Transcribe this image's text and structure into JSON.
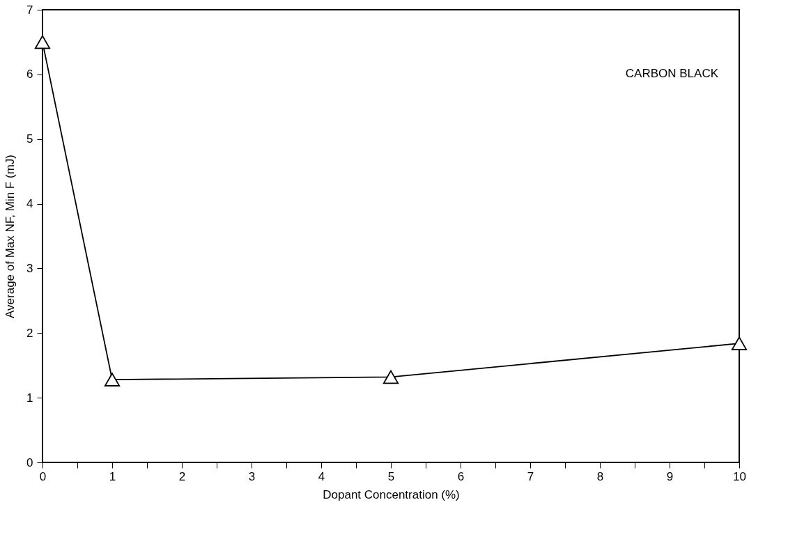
{
  "chart_data": {
    "type": "line",
    "xlabel": "Dopant Concentration (%)",
    "ylabel": "Average of Max NF, Min F (mJ)",
    "annotations": [
      "CARBON BLACK"
    ],
    "x": [
      0,
      1,
      5,
      10
    ],
    "series": [
      {
        "color": "#000000",
        "values": [
          6.5,
          1.28,
          1.32,
          1.84
        ]
      }
    ],
    "marker": "triangle",
    "line_style": "solid",
    "xlim": [
      0,
      10
    ],
    "xticks": [
      0,
      {
        "value": 0.5,
        "label": null
      },
      1,
      {
        "value": 1.5,
        "label": null
      },
      2,
      {
        "value": 2.5,
        "label": null
      },
      3,
      {
        "value": 3.5,
        "label": null
      },
      4,
      {
        "value": 4.5,
        "label": null
      },
      5,
      {
        "value": 5.5,
        "label": null
      },
      6,
      {
        "value": 6.5,
        "label": null
      },
      7,
      {
        "value": 7.5,
        "label": null
      },
      8,
      {
        "value": 8.5,
        "label": null
      },
      9,
      {
        "value": 9.5,
        "label": null
      },
      10
    ],
    "ylim": [
      0,
      7
    ],
    "yticks": [
      0,
      1,
      2,
      3,
      4,
      5,
      6,
      7
    ],
    "grid": false
  }
}
